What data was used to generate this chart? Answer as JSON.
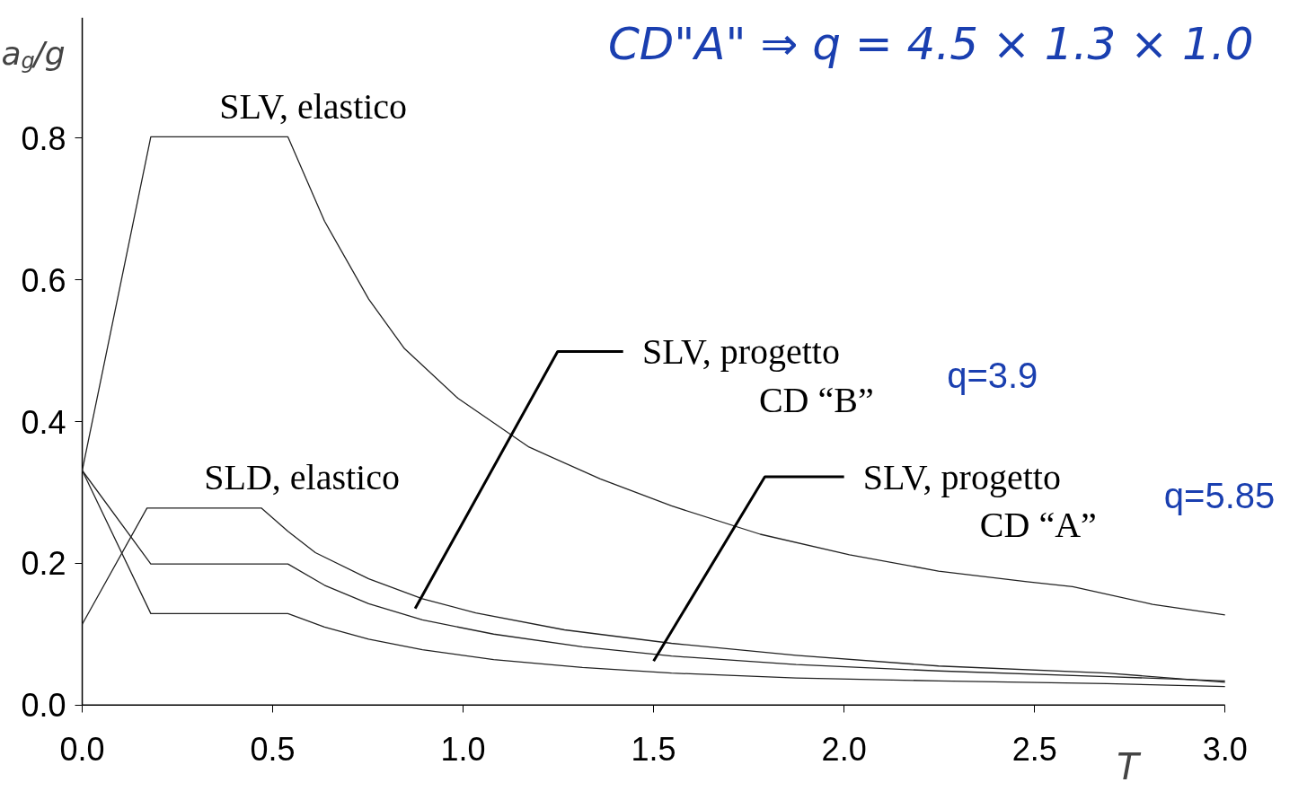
{
  "chart_data": {
    "type": "line",
    "title": "CD\"A\"  ⇒  q = 4.5 × 1.3 × 1.0",
    "xlabel": "T",
    "ylabel": "a$_{g}$/g",
    "xlim": [
      0,
      3.0
    ],
    "ylim": [
      0,
      0.97
    ],
    "xticks": [
      {
        "value": 0,
        "label": "0.0"
      },
      0.5,
      {
        "value": 1,
        "label": "1.0"
      },
      1.5,
      {
        "value": 2,
        "label": "2.0"
      },
      2.5,
      {
        "value": 3,
        "label": "3.0"
      }
    ],
    "yticks": [
      {
        "value": 0,
        "label": "0.0"
      },
      0.2,
      0.4,
      0.6,
      0.8
    ],
    "grid": false,
    "marker": "none",
    "line_style": "solid",
    "series": [
      {
        "color": "#222222",
        "x": [
          0,
          0.18,
          0.54,
          0.636,
          0.752,
          0.846,
          0.986,
          1.173,
          1.36,
          1.547,
          1.78,
          2.014,
          2.248,
          2.48,
          2.6,
          2.81,
          3.0
        ],
        "values": [
          0.331,
          0.802,
          0.802,
          0.683,
          0.573,
          0.503,
          0.433,
          0.364,
          0.319,
          0.281,
          0.241,
          0.212,
          0.189,
          0.174,
          0.167,
          0.142,
          0.127
        ]
      },
      {
        "color": "#222222",
        "x": [
          0,
          0.17,
          0.47,
          0.54,
          0.612,
          0.752,
          0.893,
          1.033,
          1.266,
          1.547,
          1.874,
          2.248,
          2.69,
          3.0
        ],
        "values": [
          0.114,
          0.278,
          0.278,
          0.245,
          0.215,
          0.178,
          0.15,
          0.13,
          0.106,
          0.087,
          0.07,
          0.055,
          0.045,
          0.032
        ]
      },
      {
        "color": "#222222",
        "x": [
          0,
          0.18,
          0.54,
          0.636,
          0.752,
          0.893,
          1.08,
          1.313,
          1.547,
          1.874,
          2.248,
          2.69,
          3.0
        ],
        "values": [
          0.331,
          0.199,
          0.199,
          0.169,
          0.143,
          0.12,
          0.1,
          0.082,
          0.069,
          0.057,
          0.048,
          0.04,
          0.034
        ]
      },
      {
        "color": "#222222",
        "x": [
          0,
          0.18,
          0.54,
          0.636,
          0.752,
          0.893,
          1.08,
          1.313,
          1.547,
          1.874,
          2.248,
          2.69,
          3.0
        ],
        "values": [
          0.331,
          0.129,
          0.129,
          0.11,
          0.093,
          0.078,
          0.064,
          0.053,
          0.045,
          0.038,
          0.034,
          0.03,
          0.026
        ]
      }
    ],
    "annotations": [
      {
        "text": "SLV, elastico",
        "x": 0.36,
        "y": 0.802
      },
      {
        "text": "SLD, elastico",
        "x": 0.32,
        "y": 0.278
      },
      "SLV, progetto\nCD “B”",
      "SLV, progetto\nCD “A”",
      "q=3.9",
      "q=5.85"
    ]
  }
}
